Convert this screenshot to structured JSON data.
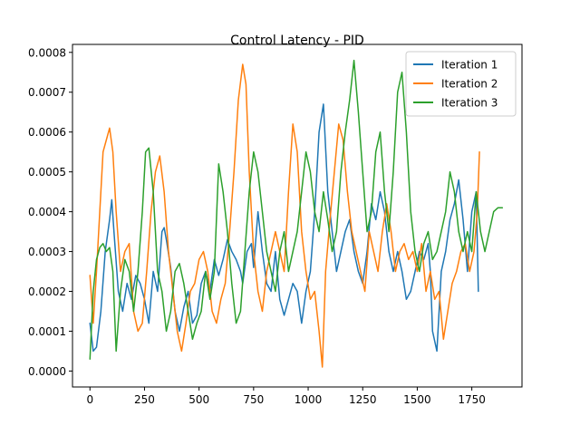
{
  "chart_data": {
    "type": "line",
    "title": "Control Latency - PID",
    "xlabel": "",
    "ylabel": "",
    "xlim": [
      -80,
      1980
    ],
    "ylim": [
      -4e-05,
      0.00082
    ],
    "xticks": [
      0,
      250,
      500,
      750,
      1000,
      1250,
      1500,
      1750
    ],
    "xtick_labels": [
      "0",
      "250",
      "500",
      "750",
      "1000",
      "1250",
      "1500",
      "1750"
    ],
    "yticks": [
      0,
      0.0001,
      0.0002,
      0.0003,
      0.0004,
      0.0005,
      0.0006,
      0.0007,
      0.0008
    ],
    "ytick_labels": [
      "0.0000",
      "0.0001",
      "0.0002",
      "0.0003",
      "0.0004",
      "0.0005",
      "0.0006",
      "0.0007",
      "0.0008"
    ],
    "grid": false,
    "legend_position": "top-right",
    "series": [
      {
        "name": "Iteration 1",
        "color": "#1f77b4",
        "x": [
          0,
          15,
          30,
          50,
          70,
          90,
          100,
          110,
          130,
          150,
          170,
          190,
          210,
          230,
          250,
          270,
          290,
          310,
          330,
          340,
          350,
          370,
          390,
          410,
          430,
          450,
          470,
          490,
          510,
          530,
          550,
          570,
          590,
          610,
          630,
          650,
          670,
          690,
          700,
          720,
          740,
          750,
          770,
          790,
          810,
          830,
          850,
          870,
          890,
          910,
          930,
          950,
          970,
          990,
          1010,
          1030,
          1050,
          1070,
          1090,
          1110,
          1130,
          1150,
          1170,
          1190,
          1210,
          1230,
          1250,
          1270,
          1290,
          1310,
          1330,
          1350,
          1370,
          1390,
          1410,
          1430,
          1450,
          1470,
          1490,
          1510,
          1530,
          1550,
          1560,
          1570,
          1590,
          1610,
          1630,
          1650,
          1670,
          1690,
          1710,
          1730,
          1750,
          1770,
          1780
        ],
        "y": [
          0.00012,
          5e-05,
          6e-05,
          0.00015,
          0.0003,
          0.00038,
          0.00043,
          0.00035,
          0.0002,
          0.00015,
          0.00022,
          0.00018,
          0.00024,
          0.00022,
          0.00018,
          0.00012,
          0.00025,
          0.0002,
          0.00035,
          0.00036,
          0.00033,
          0.00026,
          0.00015,
          0.0001,
          0.00016,
          0.0002,
          0.00012,
          0.00014,
          0.00022,
          0.00025,
          0.0002,
          0.00028,
          0.00024,
          0.00028,
          0.00033,
          0.0003,
          0.00028,
          0.00025,
          0.00022,
          0.0003,
          0.00032,
          0.00026,
          0.0004,
          0.0003,
          0.00022,
          0.0002,
          0.0003,
          0.00018,
          0.00014,
          0.00018,
          0.00022,
          0.0002,
          0.00012,
          0.0002,
          0.00025,
          0.0004,
          0.0006,
          0.00067,
          0.00045,
          0.00035,
          0.00025,
          0.0003,
          0.00035,
          0.00038,
          0.0003,
          0.00025,
          0.00022,
          0.0003,
          0.00042,
          0.00038,
          0.00045,
          0.0004,
          0.0003,
          0.00025,
          0.0003,
          0.00025,
          0.00018,
          0.0002,
          0.00025,
          0.0003,
          0.00028,
          0.00032,
          0.00025,
          0.0001,
          5e-05,
          0.00025,
          0.0003,
          0.00038,
          0.00042,
          0.00048,
          0.00038,
          0.00025,
          0.0004,
          0.00045,
          0.0002
        ]
      },
      {
        "name": "Iteration 2",
        "color": "#ff7f0e",
        "x": [
          0,
          15,
          30,
          45,
          60,
          75,
          90,
          105,
          120,
          140,
          160,
          180,
          200,
          220,
          240,
          260,
          280,
          300,
          320,
          340,
          360,
          380,
          400,
          420,
          440,
          460,
          480,
          500,
          520,
          540,
          560,
          580,
          600,
          620,
          640,
          660,
          680,
          700,
          715,
          730,
          750,
          770,
          790,
          810,
          830,
          850,
          870,
          890,
          910,
          930,
          950,
          970,
          990,
          1010,
          1030,
          1050,
          1065,
          1080,
          1100,
          1120,
          1140,
          1160,
          1180,
          1200,
          1220,
          1240,
          1260,
          1280,
          1300,
          1320,
          1340,
          1360,
          1380,
          1400,
          1420,
          1440,
          1460,
          1480,
          1500,
          1520,
          1540,
          1560,
          1580,
          1600,
          1620,
          1640,
          1660,
          1680,
          1700,
          1720,
          1740,
          1760,
          1775,
          1785
        ],
        "y": [
          0.00024,
          0.00012,
          0.00025,
          0.0004,
          0.00055,
          0.00058,
          0.00061,
          0.00055,
          0.0004,
          0.00025,
          0.0003,
          0.00032,
          0.00015,
          0.0001,
          0.00012,
          0.00025,
          0.0004,
          0.0005,
          0.00054,
          0.00045,
          0.0003,
          0.0002,
          0.0001,
          5e-05,
          0.00012,
          0.0002,
          0.00022,
          0.00028,
          0.0003,
          0.00025,
          0.00015,
          0.00012,
          0.00018,
          0.00022,
          0.00035,
          0.0005,
          0.00068,
          0.00077,
          0.00072,
          0.0005,
          0.0003,
          0.0002,
          0.00015,
          0.00025,
          0.0003,
          0.00035,
          0.0003,
          0.00025,
          0.00045,
          0.00062,
          0.00055,
          0.00035,
          0.00025,
          0.00018,
          0.0002,
          0.0001,
          1e-05,
          0.00025,
          0.00038,
          0.0005,
          0.00062,
          0.00058,
          0.00045,
          0.00035,
          0.0003,
          0.00025,
          0.0002,
          0.00035,
          0.0003,
          0.00025,
          0.00035,
          0.00042,
          0.00035,
          0.00025,
          0.0003,
          0.00032,
          0.00028,
          0.0003,
          0.00025,
          0.00032,
          0.0002,
          0.00025,
          0.00018,
          0.0002,
          8e-05,
          0.00015,
          0.00022,
          0.00025,
          0.0003,
          0.00032,
          0.00025,
          0.0003,
          0.0004,
          0.00055
        ]
      },
      {
        "name": "Iteration 3",
        "color": "#2ca02c",
        "x": [
          0,
          15,
          30,
          45,
          60,
          75,
          90,
          105,
          120,
          140,
          160,
          180,
          200,
          220,
          240,
          255,
          270,
          290,
          310,
          330,
          350,
          370,
          390,
          410,
          430,
          450,
          470,
          490,
          510,
          530,
          550,
          570,
          590,
          610,
          630,
          650,
          670,
          690,
          710,
          730,
          750,
          770,
          790,
          810,
          830,
          850,
          870,
          890,
          910,
          930,
          950,
          970,
          990,
          1010,
          1030,
          1050,
          1070,
          1090,
          1110,
          1130,
          1150,
          1170,
          1190,
          1210,
          1230,
          1250,
          1270,
          1290,
          1310,
          1330,
          1350,
          1370,
          1390,
          1410,
          1430,
          1450,
          1470,
          1490,
          1510,
          1530,
          1550,
          1570,
          1590,
          1610,
          1630,
          1650,
          1670,
          1690,
          1710,
          1730,
          1750,
          1770,
          1790,
          1810,
          1830,
          1850,
          1870,
          1890
        ],
        "y": [
          3e-05,
          0.0002,
          0.00028,
          0.00031,
          0.00032,
          0.0003,
          0.00031,
          0.00025,
          5e-05,
          0.0002,
          0.00028,
          0.00025,
          0.00015,
          0.00025,
          0.0004,
          0.00055,
          0.00056,
          0.00045,
          0.00025,
          0.0002,
          0.0001,
          0.00015,
          0.00025,
          0.00027,
          0.00022,
          0.00015,
          8e-05,
          0.00012,
          0.00015,
          0.00025,
          0.00018,
          0.00025,
          0.00052,
          0.00045,
          0.00035,
          0.00022,
          0.00012,
          0.00015,
          0.0003,
          0.00045,
          0.00055,
          0.0005,
          0.0004,
          0.0003,
          0.00025,
          0.0002,
          0.0003,
          0.00035,
          0.00025,
          0.0003,
          0.00035,
          0.00045,
          0.00055,
          0.0005,
          0.0004,
          0.00035,
          0.00045,
          0.00038,
          0.0003,
          0.00035,
          0.0005,
          0.0006,
          0.00068,
          0.00078,
          0.00065,
          0.0005,
          0.00035,
          0.0004,
          0.00055,
          0.0006,
          0.00045,
          0.00035,
          0.0005,
          0.0007,
          0.00075,
          0.0006,
          0.0004,
          0.0003,
          0.00025,
          0.00032,
          0.00035,
          0.00028,
          0.0003,
          0.00035,
          0.0004,
          0.0005,
          0.00045,
          0.00035,
          0.0003,
          0.00035,
          0.0003,
          0.00045,
          0.00035,
          0.0003,
          0.00035,
          0.0004,
          0.00041,
          0.00041
        ]
      }
    ]
  }
}
